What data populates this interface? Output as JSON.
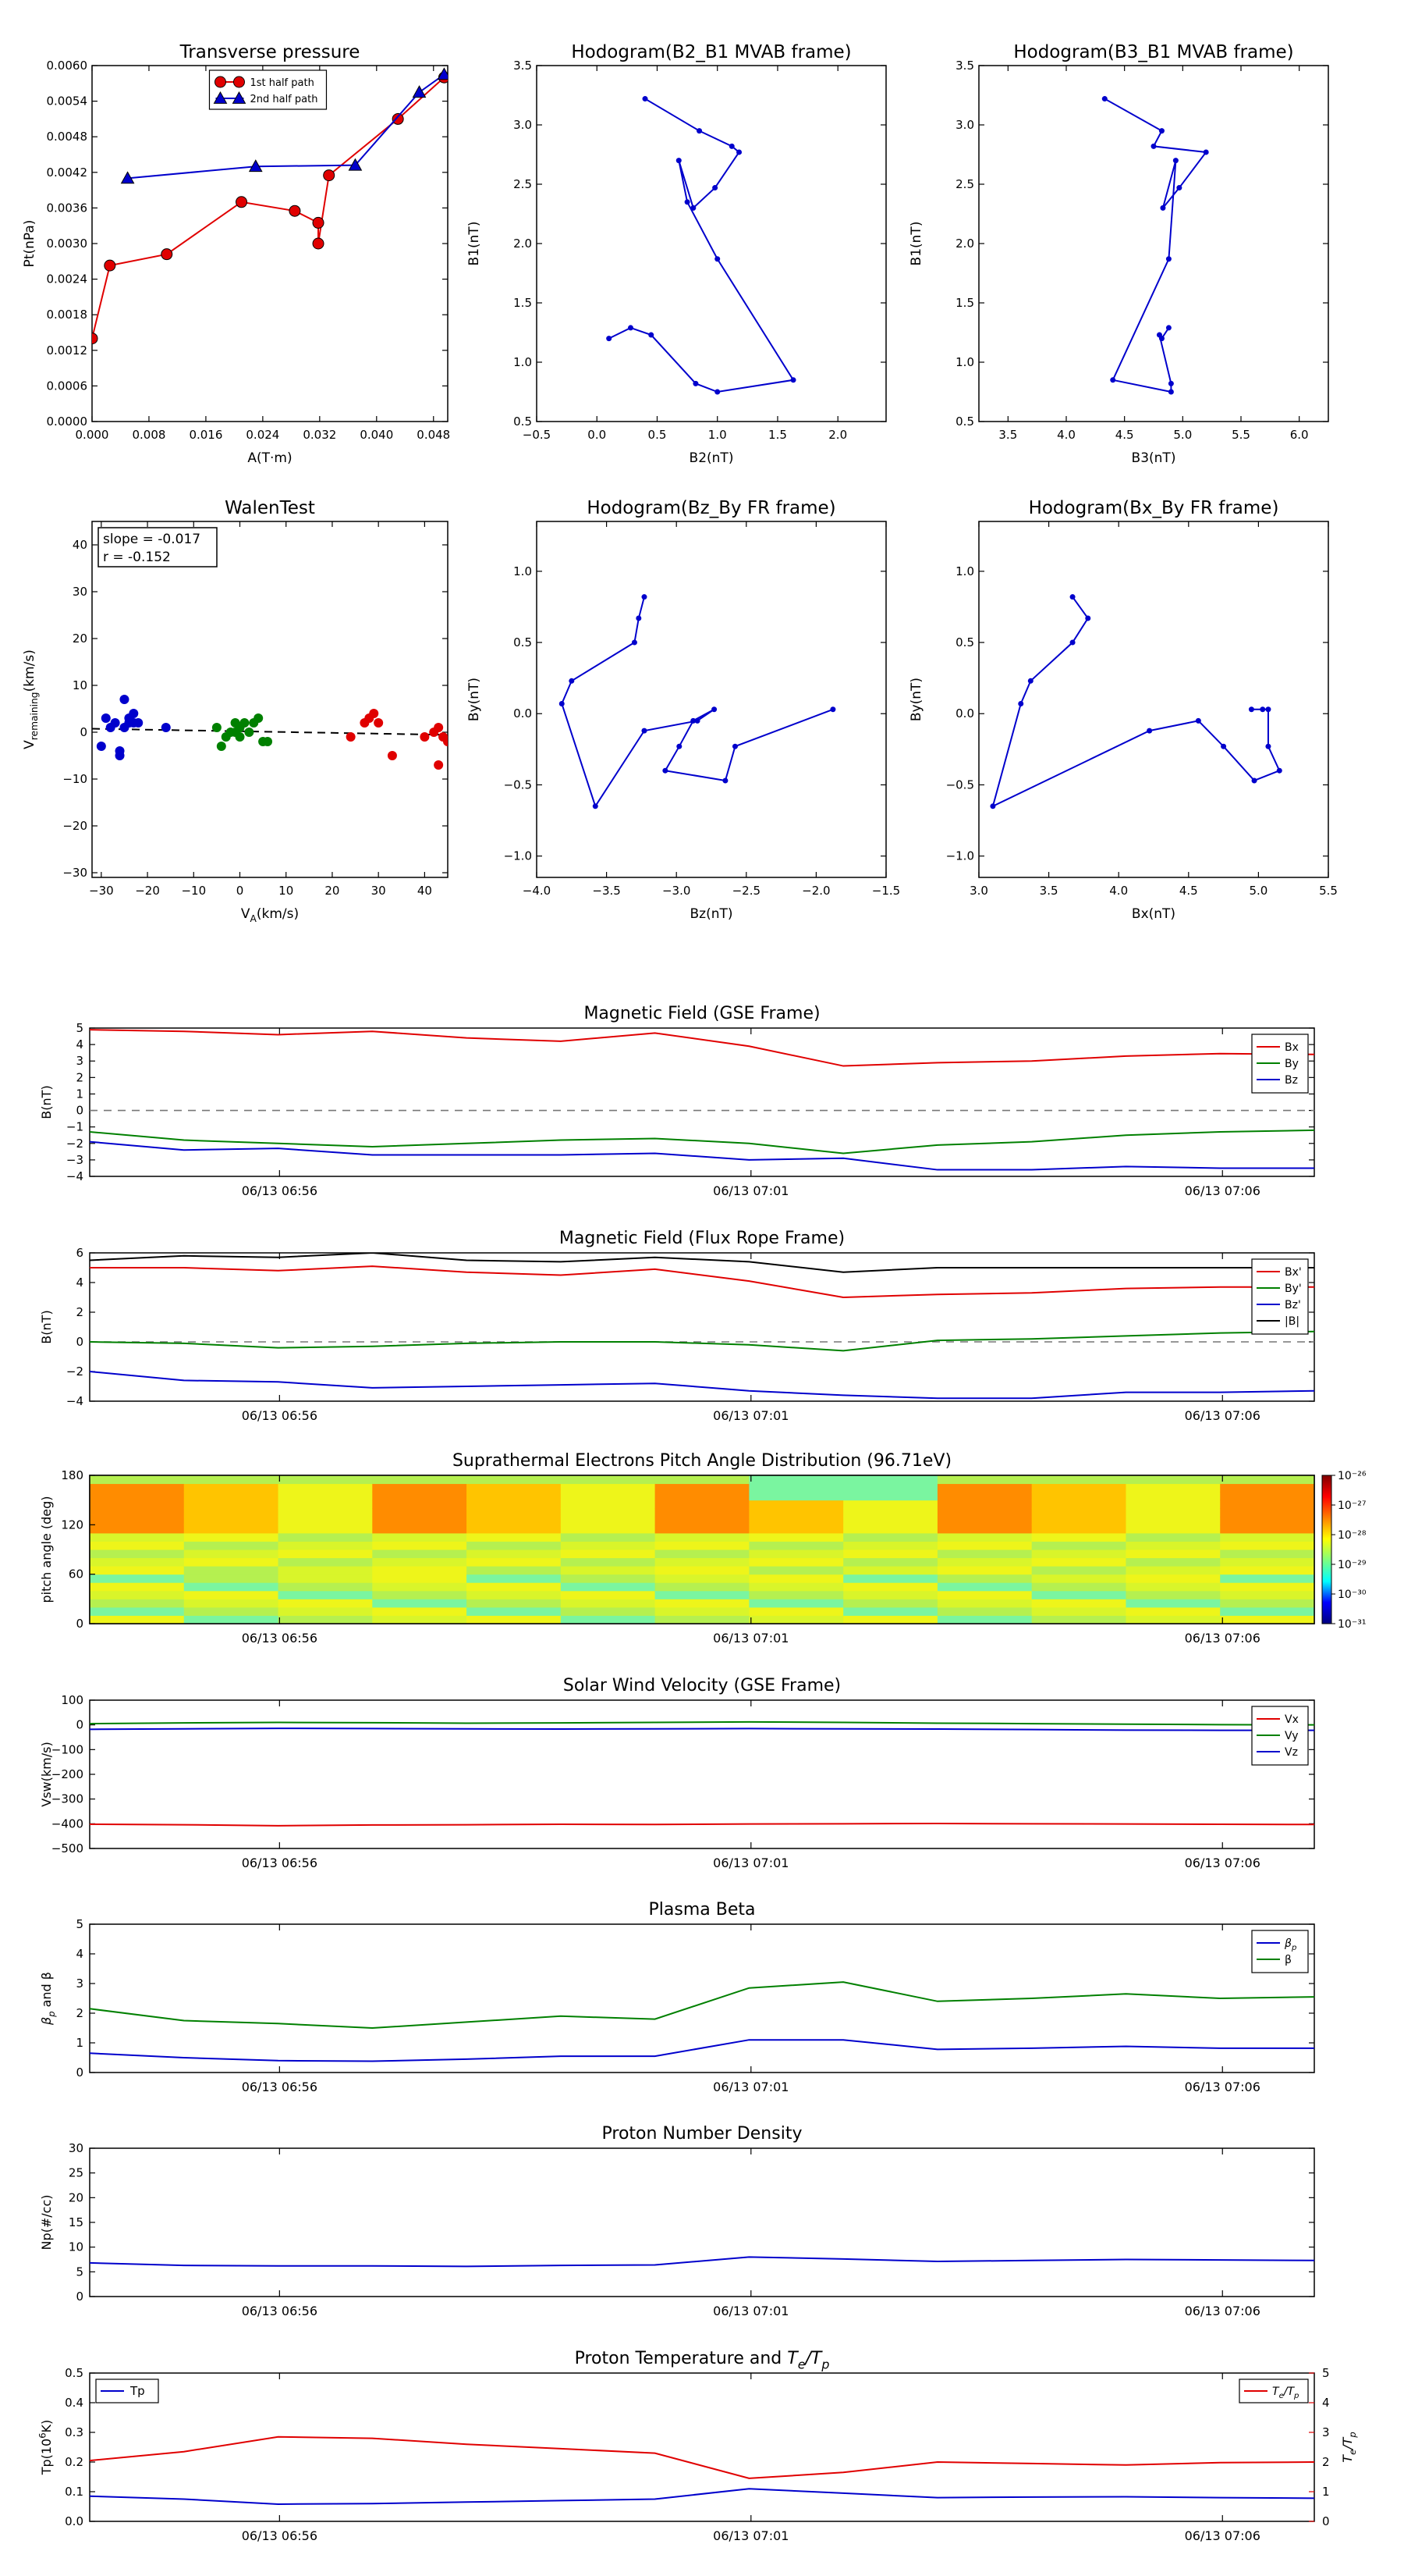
{
  "time_ticks": [
    "06/13 06:56",
    "06/13 07:01",
    "06/13 07:06"
  ],
  "charts": [
    {
      "id": "transverse-pressure",
      "type": "line",
      "title": "Transverse pressure",
      "xlabel": "A(T·m)",
      "ylabel": "Pt(nPa)",
      "xlim": [
        0,
        0.05
      ],
      "ylim": [
        0,
        0.006
      ],
      "xticks": [
        0,
        0.008,
        0.016,
        0.024,
        0.032,
        0.04,
        0.048
      ],
      "xtick_labels": [
        "0.000",
        "0.008",
        "0.016",
        "0.024",
        "0.032",
        "0.040",
        "0.048"
      ],
      "yticks": [
        0,
        0.0006,
        0.0012,
        0.0018,
        0.0024,
        0.003,
        0.0036,
        0.0042,
        0.0048,
        0.0054,
        0.006
      ],
      "ytick_labels": [
        "0.0000",
        "0.0006",
        "0.0012",
        "0.0018",
        "0.0024",
        "0.0030",
        "0.0036",
        "0.0042",
        "0.0048",
        "0.0054",
        "0.0060"
      ],
      "legend": "top-center",
      "series": [
        {
          "name": "1st half path",
          "color": "#e00000",
          "marker": "circle",
          "x": [
            0.0,
            0.0025,
            0.0105,
            0.021,
            0.0285,
            0.0318,
            0.0318,
            0.0333,
            0.043,
            0.0495
          ],
          "y": [
            0.0014,
            0.00263,
            0.00282,
            0.0037,
            0.00355,
            0.00335,
            0.003,
            0.00415,
            0.0051,
            0.0058
          ]
        },
        {
          "name": "2nd half path",
          "color": "#0000cc",
          "marker": "triangle",
          "x": [
            0.005,
            0.023,
            0.037,
            0.046,
            0.0495
          ],
          "y": [
            0.0041,
            0.0043,
            0.00432,
            0.00555,
            0.00585
          ]
        }
      ]
    },
    {
      "id": "hodogram-b2-b1",
      "type": "line",
      "title": "Hodogram(B2_B1 MVAB frame)",
      "xlabel": "B2(nT)",
      "ylabel": "B1(nT)",
      "xlim": [
        -0.5,
        2.4
      ],
      "ylim": [
        0.5,
        3.5
      ],
      "xticks": [
        -0.5,
        0,
        0.5,
        1.0,
        1.5,
        2.0
      ],
      "xtick_labels": [
        "−0.5",
        "0.0",
        "0.5",
        "1.0",
        "1.5",
        "2.0"
      ],
      "yticks": [
        0.5,
        1.0,
        1.5,
        2.0,
        2.5,
        3.0,
        3.5
      ],
      "ytick_labels": [
        "0.5",
        "1.0",
        "1.5",
        "2.0",
        "2.5",
        "3.0",
        "3.5"
      ],
      "series": [
        {
          "color": "#0000cc",
          "marker": "dot",
          "x": [
            0.4,
            0.85,
            1.12,
            1.18,
            0.98,
            0.8,
            0.68,
            0.75,
            1.0,
            1.63,
            1.0,
            0.82,
            0.45,
            0.28,
            0.1
          ],
          "y": [
            3.22,
            2.95,
            2.82,
            2.77,
            2.47,
            2.3,
            2.7,
            2.35,
            1.87,
            0.85,
            0.75,
            0.82,
            1.23,
            1.29,
            1.2
          ]
        }
      ]
    },
    {
      "id": "hodogram-b3-b1",
      "type": "line",
      "title": "Hodogram(B3_B1 MVAB frame)",
      "xlabel": "B3(nT)",
      "ylabel": "B1(nT)",
      "xlim": [
        3.25,
        6.25
      ],
      "ylim": [
        0.5,
        3.5
      ],
      "xticks": [
        3.5,
        4.0,
        4.5,
        5.0,
        5.5,
        6.0
      ],
      "xtick_labels": [
        "3.5",
        "4.0",
        "4.5",
        "5.0",
        "5.5",
        "6.0"
      ],
      "yticks": [
        0.5,
        1.0,
        1.5,
        2.0,
        2.5,
        3.0,
        3.5
      ],
      "ytick_labels": [
        "0.5",
        "1.0",
        "1.5",
        "2.0",
        "2.5",
        "3.0",
        "3.5"
      ],
      "series": [
        {
          "color": "#0000cc",
          "marker": "dot",
          "x": [
            4.33,
            4.82,
            4.75,
            5.2,
            4.97,
            4.83,
            4.94,
            4.88,
            4.4,
            4.9,
            4.9,
            4.8,
            4.82,
            4.88
          ],
          "y": [
            3.22,
            2.95,
            2.82,
            2.77,
            2.47,
            2.3,
            2.7,
            1.87,
            0.85,
            0.75,
            0.82,
            1.23,
            1.2,
            1.29
          ]
        }
      ]
    },
    {
      "id": "walen-test",
      "type": "scatter",
      "title": "WalenTest",
      "xlabel": "V",
      "xlabel_sub": "A",
      "xlabel_tail": "(km/s)",
      "ylabel": "V",
      "ylabel_sub": "remaining",
      "ylabel_tail": "(km/s)",
      "xlim": [
        -32,
        45
      ],
      "ylim": [
        -31,
        45
      ],
      "xticks": [
        -30,
        -20,
        -10,
        0,
        10,
        20,
        30,
        40
      ],
      "xtick_labels": [
        "−30",
        "−20",
        "−10",
        "0",
        "10",
        "20",
        "30",
        "40"
      ],
      "yticks": [
        -30,
        -20,
        -10,
        0,
        10,
        20,
        30,
        40
      ],
      "ytick_labels": [
        "−30",
        "−20",
        "−10",
        "0",
        "10",
        "20",
        "30",
        "40"
      ],
      "annotation_lines": [
        "slope = -0.017",
        "r = -0.152"
      ],
      "fit_line": {
        "slope": -0.017,
        "intercept": 0.2
      },
      "series": [
        {
          "color": "#0000cc",
          "x": [
            -30,
            -29,
            -28,
            -27,
            -26,
            -26,
            -25,
            -25,
            -24,
            -24,
            -23,
            -23,
            -22,
            -16
          ],
          "y": [
            -3,
            3,
            1,
            2,
            -5,
            -4,
            1,
            7,
            3,
            2,
            4,
            2,
            2,
            1
          ]
        },
        {
          "color": "#008000",
          "x": [
            -5,
            -4,
            -3,
            -2,
            -1,
            -1,
            0,
            0,
            1,
            2,
            3,
            4,
            5,
            6
          ],
          "y": [
            1,
            -3,
            -1,
            0,
            2,
            0,
            -1,
            1,
            2,
            0,
            2,
            3,
            -2,
            -2
          ]
        },
        {
          "color": "#e00000",
          "x": [
            24,
            27,
            28,
            29,
            30,
            33,
            40,
            42,
            43,
            43,
            44,
            45
          ],
          "y": [
            -1,
            2,
            3,
            4,
            2,
            -5,
            -1,
            0,
            -7,
            1,
            -1,
            -2
          ]
        }
      ]
    },
    {
      "id": "hodogram-bz-by",
      "type": "line",
      "title": "Hodogram(Bz_By FR frame)",
      "xlabel": "Bz(nT)",
      "ylabel": "By(nT)",
      "xlim": [
        -4.0,
        -1.5
      ],
      "ylim": [
        -1.15,
        1.35
      ],
      "xticks": [
        -4.0,
        -3.5,
        -3.0,
        -2.5,
        -2.0,
        -1.5
      ],
      "xtick_labels": [
        "−4.0",
        "−3.5",
        "−3.0",
        "−2.5",
        "−2.0",
        "−1.5"
      ],
      "yticks": [
        -1.0,
        -0.5,
        0.0,
        0.5,
        1.0
      ],
      "ytick_labels": [
        "−1.0",
        "−0.5",
        "0.0",
        "0.5",
        "1.0"
      ],
      "series": [
        {
          "color": "#0000cc",
          "marker": "dot",
          "x": [
            -3.23,
            -3.27,
            -3.3,
            -3.75,
            -3.82,
            -3.58,
            -3.23,
            -2.85,
            -2.73,
            -2.88,
            -2.98,
            -3.08,
            -2.65,
            -2.58,
            -1.88
          ],
          "y": [
            0.82,
            0.67,
            0.5,
            0.23,
            0.07,
            -0.65,
            -0.12,
            -0.05,
            0.03,
            -0.05,
            -0.23,
            -0.4,
            -0.47,
            -0.23,
            0.03
          ]
        }
      ]
    },
    {
      "id": "hodogram-bx-by",
      "type": "line",
      "title": "Hodogram(Bx_By FR frame)",
      "xlabel": "Bx(nT)",
      "ylabel": "By(nT)",
      "xlim": [
        3.0,
        5.5
      ],
      "ylim": [
        -1.15,
        1.35
      ],
      "xticks": [
        3.0,
        3.5,
        4.0,
        4.5,
        5.0,
        5.5
      ],
      "xtick_labels": [
        "3.0",
        "3.5",
        "4.0",
        "4.5",
        "5.0",
        "5.5"
      ],
      "yticks": [
        -1.0,
        -0.5,
        0.0,
        0.5,
        1.0
      ],
      "ytick_labels": [
        "−1.0",
        "−0.5",
        "0.0",
        "0.5",
        "1.0"
      ],
      "series": [
        {
          "color": "#0000cc",
          "marker": "dot",
          "x": [
            3.67,
            3.78,
            3.67,
            3.37,
            3.3,
            3.1,
            4.22,
            4.57,
            4.75,
            4.97,
            5.15,
            5.07,
            5.07,
            5.03,
            4.95
          ],
          "y": [
            0.82,
            0.67,
            0.5,
            0.23,
            0.07,
            -0.65,
            -0.12,
            -0.05,
            -0.23,
            -0.47,
            -0.4,
            -0.23,
            0.03,
            0.03,
            0.03
          ]
        }
      ]
    },
    {
      "id": "magnetic-field-gse",
      "type": "line",
      "title": "Magnetic Field (GSE Frame)",
      "ylabel": "B(nT)",
      "ylim": [
        -4,
        5
      ],
      "yticks": [
        -4,
        -3,
        -2,
        -1,
        0,
        1,
        2,
        3,
        4,
        5
      ],
      "ytick_labels": [
        "−4",
        "−3",
        "−2",
        "−1",
        "0",
        "1",
        "2",
        "3",
        "4",
        "5"
      ],
      "zero_line": true,
      "legend": "top-right",
      "series": [
        {
          "name": "Bx",
          "color": "#e00000",
          "y": [
            4.9,
            4.8,
            4.6,
            4.8,
            4.4,
            4.2,
            4.7,
            3.9,
            2.7,
            2.9,
            3.0,
            3.3,
            3.45,
            3.4
          ]
        },
        {
          "name": "By",
          "color": "#008000",
          "y": [
            -1.3,
            -1.8,
            -2.0,
            -2.2,
            -2.0,
            -1.8,
            -1.7,
            -2.0,
            -2.6,
            -2.1,
            -1.9,
            -1.5,
            -1.3,
            -1.2
          ]
        },
        {
          "name": "Bz",
          "color": "#0000cc",
          "y": [
            -1.9,
            -2.4,
            -2.3,
            -2.7,
            -2.7,
            -2.7,
            -2.6,
            -3.0,
            -2.9,
            -3.6,
            -3.6,
            -3.4,
            -3.5,
            -3.5
          ]
        }
      ]
    },
    {
      "id": "magnetic-field-fr",
      "type": "line",
      "title": "Magnetic Field (Flux Rope Frame)",
      "ylabel": "B(nT)",
      "ylim": [
        -4,
        6
      ],
      "yticks": [
        -4,
        -2,
        0,
        2,
        4,
        6
      ],
      "ytick_labels": [
        "−4",
        "−2",
        "0",
        "2",
        "4",
        "6"
      ],
      "zero_line": true,
      "legend": "top-right",
      "series": [
        {
          "name": "Bx'",
          "color": "#e00000",
          "y": [
            5.0,
            5.0,
            4.8,
            5.1,
            4.7,
            4.5,
            4.9,
            4.1,
            3.0,
            3.2,
            3.3,
            3.6,
            3.7,
            3.7
          ]
        },
        {
          "name": "By'",
          "color": "#008000",
          "y": [
            0.0,
            -0.1,
            -0.4,
            -0.3,
            -0.1,
            0.0,
            0.0,
            -0.2,
            -0.6,
            0.1,
            0.2,
            0.4,
            0.6,
            0.7
          ]
        },
        {
          "name": "Bz'",
          "color": "#0000cc",
          "y": [
            -2.0,
            -2.6,
            -2.7,
            -3.1,
            -3.0,
            -2.9,
            -2.8,
            -3.3,
            -3.6,
            -3.8,
            -3.8,
            -3.4,
            -3.4,
            -3.3
          ]
        },
        {
          "name": "|B|",
          "color": "#000000",
          "y": [
            5.5,
            5.8,
            5.7,
            6.0,
            5.5,
            5.4,
            5.7,
            5.4,
            4.7,
            5.0,
            5.0,
            5.0,
            5.0,
            5.0
          ]
        }
      ]
    },
    {
      "id": "pitch-angle",
      "type": "heatmap",
      "title": "Suprathermal Electrons Pitch Angle Distribution (96.71eV)",
      "ylabel": "pitch angle (deg)",
      "ylim": [
        0,
        180
      ],
      "yticks": [
        0,
        60,
        120,
        180
      ],
      "ytick_labels": [
        "0",
        "60",
        "120",
        "180"
      ],
      "colorbar_ticks": [
        "10⁻²⁶",
        "10⁻²⁷",
        "10⁻²⁸",
        "10⁻²⁹",
        "10⁻³⁰",
        "10⁻³¹"
      ]
    },
    {
      "id": "solar-wind-velocity",
      "type": "line",
      "title": "Solar Wind Velocity (GSE Frame)",
      "ylabel": "Vsw(km/s)",
      "ylim": [
        -500,
        100
      ],
      "yticks": [
        -500,
        -400,
        -300,
        -200,
        -100,
        0,
        100
      ],
      "ytick_labels": [
        "−500",
        "−400",
        "−300",
        "−200",
        "−100",
        "0",
        "100"
      ],
      "legend": "top-right",
      "series": [
        {
          "name": "Vx",
          "color": "#e00000",
          "y": [
            -402,
            -404,
            -408,
            -405,
            -404,
            -402,
            -403,
            -401,
            -400,
            -399,
            -400,
            -401,
            -402,
            -403
          ]
        },
        {
          "name": "Vy",
          "color": "#008000",
          "y": [
            5,
            8,
            10,
            9,
            7,
            8,
            10,
            12,
            10,
            7,
            5,
            3,
            1,
            0
          ]
        },
        {
          "name": "Vz",
          "color": "#0000cc",
          "y": [
            -18,
            -16,
            -14,
            -15,
            -16,
            -17,
            -16,
            -15,
            -16,
            -17,
            -19,
            -21,
            -22,
            -22
          ]
        }
      ]
    },
    {
      "id": "plasma-beta",
      "type": "line",
      "title": "Plasma Beta",
      "ylabel": "β",
      "ylabel_sub": "p",
      "ylabel_tail": " and β",
      "ylim": [
        0,
        5
      ],
      "yticks": [
        0,
        1,
        2,
        3,
        4,
        5
      ],
      "ytick_labels": [
        "0",
        "1",
        "2",
        "3",
        "4",
        "5"
      ],
      "legend": "top-right",
      "series": [
        {
          "name": "β",
          "name_sub": "p",
          "color": "#0000cc",
          "y": [
            0.65,
            0.5,
            0.4,
            0.38,
            0.45,
            0.55,
            0.55,
            1.1,
            1.1,
            0.78,
            0.82,
            0.88,
            0.82,
            0.82
          ]
        },
        {
          "name": "β",
          "color": "#008000",
          "y": [
            2.15,
            1.75,
            1.65,
            1.5,
            1.7,
            1.9,
            1.8,
            2.85,
            3.05,
            2.4,
            2.5,
            2.65,
            2.5,
            2.55
          ]
        }
      ]
    },
    {
      "id": "proton-density",
      "type": "line",
      "title": "Proton Number Density",
      "ylabel": "Np(#/cc)",
      "ylim": [
        0,
        30
      ],
      "yticks": [
        0,
        5,
        10,
        15,
        20,
        25,
        30
      ],
      "ytick_labels": [
        "0",
        "5",
        "10",
        "15",
        "20",
        "25",
        "30"
      ],
      "series": [
        {
          "color": "#0000cc",
          "y": [
            6.8,
            6.3,
            6.2,
            6.2,
            6.1,
            6.3,
            6.4,
            8.0,
            7.6,
            7.1,
            7.3,
            7.5,
            7.4,
            7.3
          ]
        }
      ]
    },
    {
      "id": "proton-temperature",
      "type": "line",
      "title": "Proton Temperature and ",
      "title_math": "T",
      "title_sub": "e",
      "title_mid": "/T",
      "title_sub2": "p",
      "ylabel": "Tp(10",
      "ylabel_sup": "6",
      "ylabel_tail": "K)",
      "ylim": [
        0,
        0.5
      ],
      "yticks": [
        0,
        0.1,
        0.2,
        0.3,
        0.4,
        0.5
      ],
      "ytick_labels": [
        "0.0",
        "0.1",
        "0.2",
        "0.3",
        "0.4",
        "0.5"
      ],
      "y2label": "T",
      "y2label_sub": "e",
      "y2label_mid": "/T",
      "y2label_sub2": "p",
      "y2lim": [
        0,
        5
      ],
      "y2ticks": [
        0,
        1,
        2,
        3,
        4,
        5
      ],
      "y2tick_labels": [
        "0",
        "1",
        "2",
        "3",
        "4",
        "5"
      ],
      "series": [
        {
          "name": "Tp",
          "color": "#0000cc",
          "axis": "left",
          "y": [
            0.085,
            0.075,
            0.058,
            0.06,
            0.065,
            0.07,
            0.075,
            0.11,
            0.095,
            0.08,
            0.082,
            0.083,
            0.08,
            0.078
          ]
        },
        {
          "name": "T",
          "name_sub": "e",
          "name_mid": "/T",
          "name_sub2": "p",
          "color": "#e00000",
          "axis": "right",
          "y": [
            2.05,
            2.35,
            2.85,
            2.8,
            2.6,
            2.45,
            2.3,
            1.45,
            1.65,
            2.0,
            1.95,
            1.9,
            1.98,
            2.0
          ]
        }
      ]
    }
  ]
}
